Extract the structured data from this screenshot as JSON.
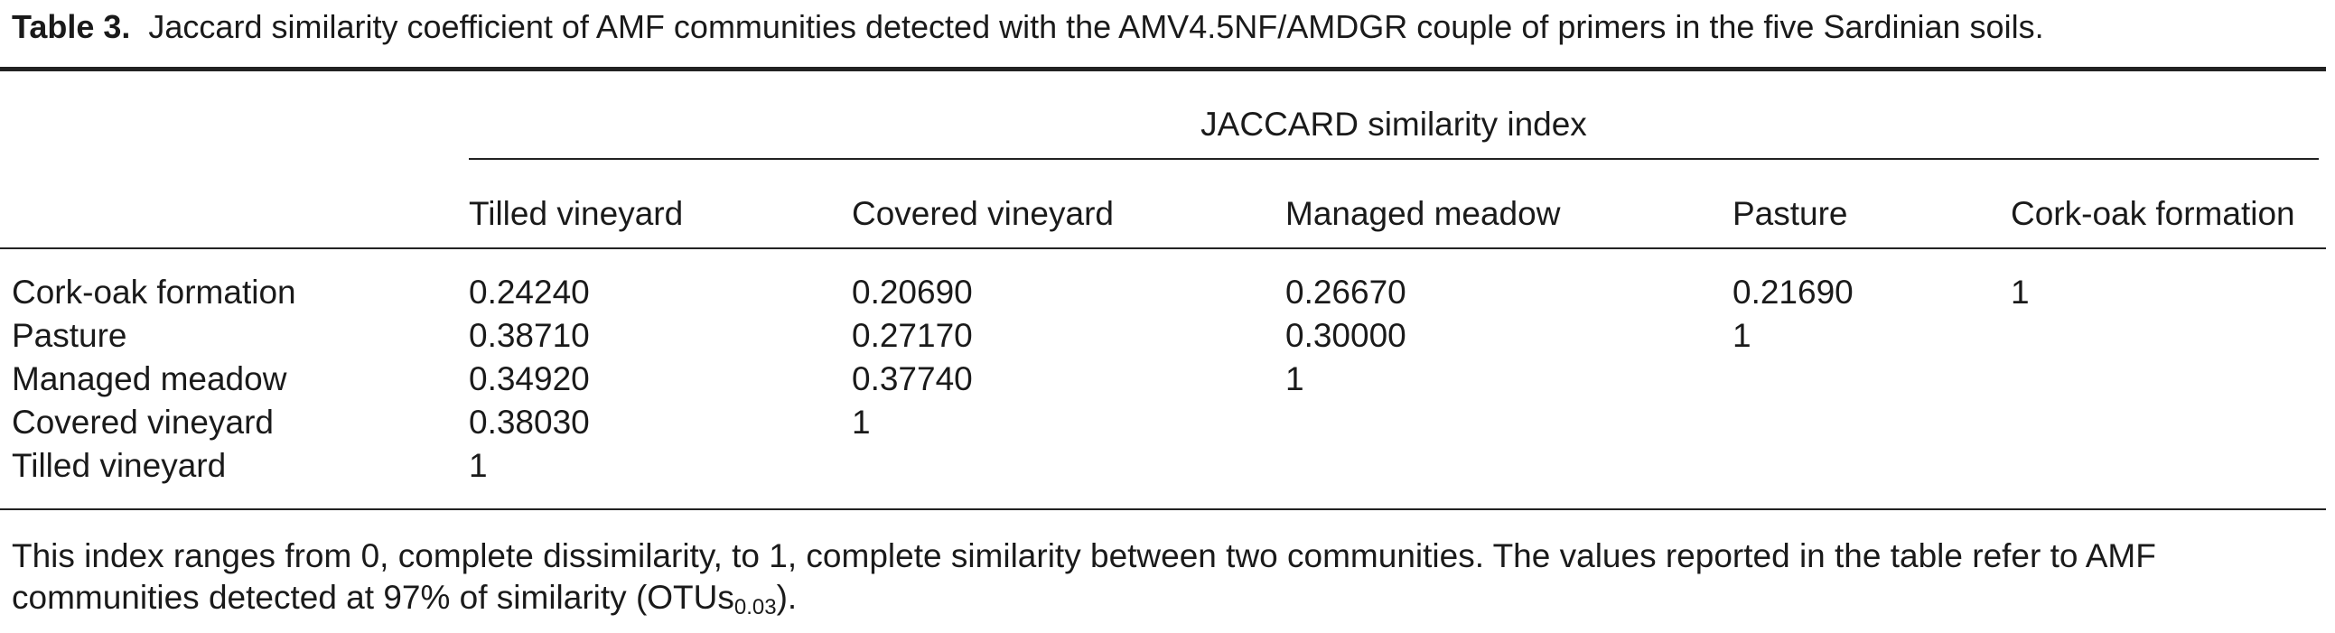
{
  "caption": {
    "label": "Table 3.",
    "text": "Jaccard similarity coefficient of AMF communities detected with the AMV4.5NF/AMDGR couple of primers in the five Sardinian soils."
  },
  "table": {
    "group_header": "JACCARD similarity index",
    "columns": [
      "Tilled vineyard",
      "Covered vineyard",
      "Managed meadow",
      "Pasture",
      "Cork-oak formation"
    ],
    "rows": [
      {
        "label": "Cork-oak formation",
        "cells": [
          "0.24240",
          "0.20690",
          "0.26670",
          "0.21690",
          "1"
        ]
      },
      {
        "label": "Pasture",
        "cells": [
          "0.38710",
          "0.27170",
          "0.30000",
          "1"
        ]
      },
      {
        "label": "Managed meadow",
        "cells": [
          "0.34920",
          "0.37740",
          "1"
        ]
      },
      {
        "label": "Covered vineyard",
        "cells": [
          "0.38030",
          "1"
        ]
      },
      {
        "label": "Tilled vineyard",
        "cells": [
          "1"
        ]
      }
    ]
  },
  "footer": {
    "line1": "This index ranges from 0, complete dissimilarity, to 1, complete similarity between two communities. The values reported in the table refer to AMF",
    "line2": "communities detected at 97% of similarity (OTUs",
    "subscript": "0.03",
    "after": ")."
  }
}
